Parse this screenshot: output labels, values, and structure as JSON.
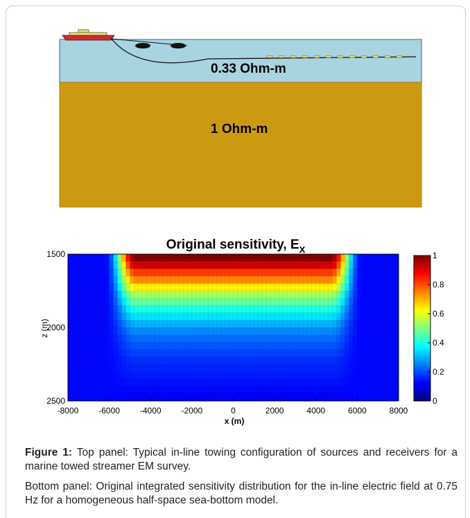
{
  "top_panel": {
    "water_label": "0.33 Ohm-m",
    "seabed_label": "1 Ohm-m",
    "colors": {
      "water": "#a8d4e0",
      "sediment": "#cc9a12",
      "boat_hull": "#d42a2a",
      "boat_cabin": "#f0e070"
    }
  },
  "chart_data": {
    "type": "heatmap",
    "title": "Original sensitivity,  E",
    "title_sub": "X",
    "xlabel": "x (m)",
    "ylabel": "z (m)",
    "xlim": [
      -8000,
      8000
    ],
    "ylim": [
      1500,
      2500
    ],
    "y_inverted": true,
    "x_ticks": [
      -8000,
      -6000,
      -4000,
      -2000,
      0,
      2000,
      4000,
      6000,
      8000
    ],
    "y_ticks": [
      1500,
      2000,
      2500
    ],
    "colorbar": {
      "min": 0,
      "max": 1,
      "ticks": [
        "1",
        "0.8",
        "0.6",
        "0.4",
        "0.2",
        "0"
      ]
    },
    "depth_rows": [
      1525,
      1575,
      1625,
      1675,
      1725,
      1775,
      1825,
      1875,
      1925,
      1975,
      2025,
      2075,
      2125,
      2175,
      2225,
      2275,
      2325,
      2375,
      2425,
      2475
    ],
    "depth_peak_values": [
      1.0,
      0.92,
      0.82,
      0.74,
      0.64,
      0.54,
      0.47,
      0.4,
      0.35,
      0.3,
      0.26,
      0.23,
      0.21,
      0.19,
      0.17,
      0.16,
      0.15,
      0.14,
      0.13,
      0.12
    ],
    "lateral_plateau_halfwidth": 4700,
    "lateral_falloff_edge": 6200
  },
  "caption": {
    "label": "Figure 1:",
    "text1": " Top panel: Typical in-line towing configuration of sources and receivers for a marine towed streamer EM survey.",
    "text2": "Bottom panel: Original integrated sensitivity distribution for the in-line electric field at 0.75 Hz for a homogeneous half-space sea-bottom model."
  }
}
